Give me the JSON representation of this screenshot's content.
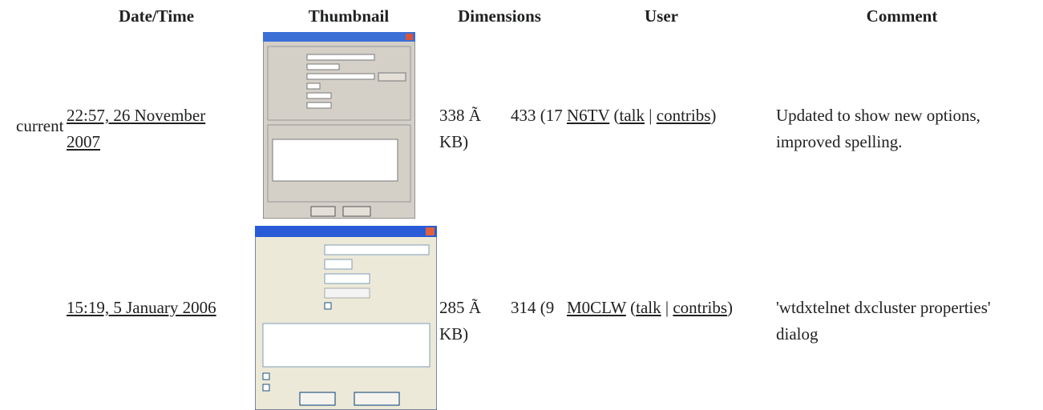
{
  "table": {
    "headers": [
      "Date/Time",
      "Thumbnail",
      "Dimensions",
      "User",
      "Comment"
    ],
    "rows": [
      {
        "status": "current",
        "datetime": "22:57, 26 November 2007",
        "dimensions": [
          "338 Ã",
          "433 (17",
          "KB)"
        ],
        "user": {
          "name": "N6TV",
          "open": "(",
          "talk": "talk",
          "sep": "|",
          "contribs": "contribs",
          "close": ")"
        },
        "comment": "Updated to show new options, improved spelling."
      },
      {
        "datetime": "15:19, 5 January 2006",
        "dimensions": [
          "285 Ã",
          "314 (9",
          "KB)"
        ],
        "user": {
          "name": "M0CLW",
          "open": "(",
          "talk": "talk",
          "sep": "|",
          "contribs": "contribs",
          "close": ")"
        },
        "comment": "'wtdxtelnet dxcluster properties' dialog"
      }
    ]
  }
}
